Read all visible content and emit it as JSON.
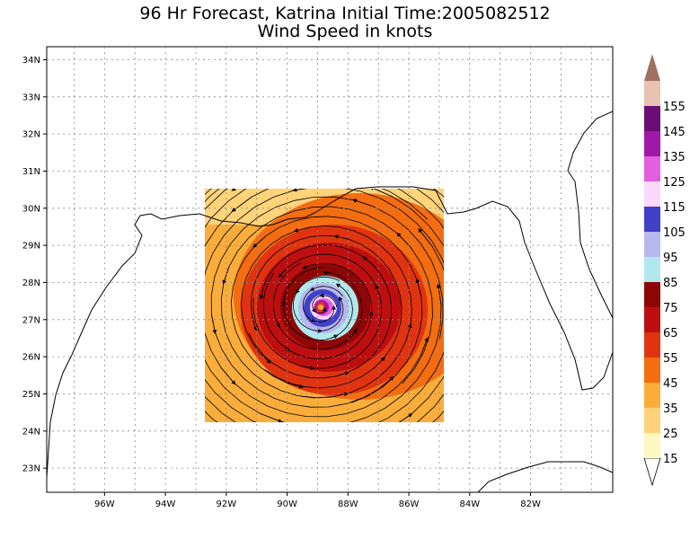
{
  "title": "96 Hr Forecast, Katrina Initial Time:2005082512",
  "subtitle": "Wind Speed in knots",
  "lat_ticks": [
    "34N",
    "33N",
    "32N",
    "31N",
    "30N",
    "29N",
    "28N",
    "27N",
    "26N",
    "25N",
    "24N",
    "23N"
  ],
  "lon_ticks": [
    "96W",
    "94W",
    "92W",
    "90W",
    "88W",
    "86W",
    "84W",
    "82W"
  ],
  "colorbar": {
    "labels": [
      "15",
      "25",
      "35",
      "45",
      "55",
      "65",
      "75",
      "85",
      "95",
      "105",
      "115",
      "125",
      "135",
      "145",
      "155"
    ],
    "colors": [
      "#fff8c0",
      "#ffd37a",
      "#fbad3c",
      "#f46d10",
      "#e03411",
      "#be0f10",
      "#8e0606",
      "#b0e8ee",
      "#b8b8f0",
      "#4040c8",
      "#fcd8fc",
      "#e060e0",
      "#a018a8",
      "#6c0c74",
      "#e8c2b2",
      "#a07060"
    ]
  },
  "storm": {
    "center_lon": -89.2,
    "center_lat": 27.3
  }
}
